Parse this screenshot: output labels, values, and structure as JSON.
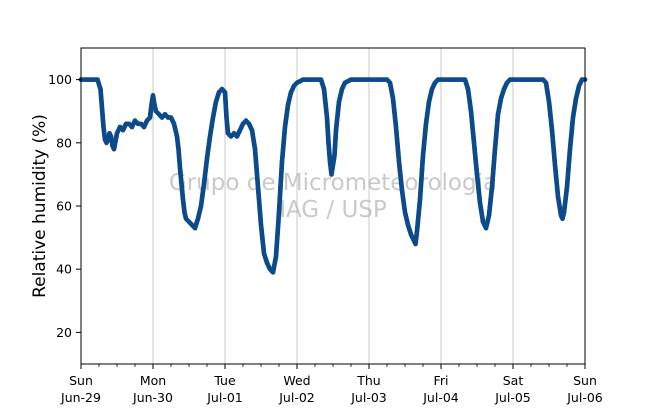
{
  "chart_data": {
    "type": "scatter",
    "title": "",
    "xlabel": "",
    "ylabel": "Relative humidity (%)",
    "watermark": [
      "Grupo de Micrometeorologia",
      "IAG / USP"
    ],
    "xlim": [
      "2025-06-29 00:00",
      "2025-07-06 00:00"
    ],
    "ylim": [
      10,
      110
    ],
    "yticks": [
      20,
      40,
      60,
      80,
      100
    ],
    "xticks": [
      {
        "day": "Sun",
        "date": "Jun-29"
      },
      {
        "day": "Mon",
        "date": "Jun-30"
      },
      {
        "day": "Tue",
        "date": "Jul-01"
      },
      {
        "day": "Wed",
        "date": "Jul-02"
      },
      {
        "day": "Thu",
        "date": "Jul-03"
      },
      {
        "day": "Fri",
        "date": "Jul-04"
      },
      {
        "day": "Sat",
        "date": "Jul-05"
      },
      {
        "day": "Sun",
        "date": "Jul-06"
      }
    ],
    "grid": "vertical-major",
    "marker_color": "#0d4a8c",
    "series": [
      {
        "values": [
          [
            "2025-06-29 00:00",
            100
          ],
          [
            "2025-06-29 02:00",
            100
          ],
          [
            "2025-06-29 04:00",
            100
          ],
          [
            "2025-06-29 05:30",
            100
          ],
          [
            "2025-06-29 06:30",
            97
          ],
          [
            "2025-06-29 07:00",
            91
          ],
          [
            "2025-06-29 07:30",
            85
          ],
          [
            "2025-06-29 08:00",
            81
          ],
          [
            "2025-06-29 08:30",
            80
          ],
          [
            "2025-06-29 09:00",
            81
          ],
          [
            "2025-06-29 09:30",
            83
          ],
          [
            "2025-06-29 10:00",
            82
          ],
          [
            "2025-06-29 10:30",
            79
          ],
          [
            "2025-06-29 11:00",
            78
          ],
          [
            "2025-06-29 12:00",
            83
          ],
          [
            "2025-06-29 13:00",
            85
          ],
          [
            "2025-06-29 14:00",
            84
          ],
          [
            "2025-06-29 15:00",
            86
          ],
          [
            "2025-06-29 16:00",
            86
          ],
          [
            "2025-06-29 17:00",
            85
          ],
          [
            "2025-06-29 18:00",
            87
          ],
          [
            "2025-06-29 19:00",
            86
          ],
          [
            "2025-06-29 20:00",
            86
          ],
          [
            "2025-06-29 21:00",
            85
          ],
          [
            "2025-06-29 22:00",
            87
          ],
          [
            "2025-06-29 23:00",
            88
          ],
          [
            "2025-06-29 23:30",
            92
          ],
          [
            "2025-06-30 00:00",
            95
          ],
          [
            "2025-06-30 00:30",
            92
          ],
          [
            "2025-06-30 01:00",
            90
          ],
          [
            "2025-06-30 02:00",
            89
          ],
          [
            "2025-06-30 03:00",
            88
          ],
          [
            "2025-06-30 04:00",
            89
          ],
          [
            "2025-06-30 05:00",
            88
          ],
          [
            "2025-06-30 06:00",
            88
          ],
          [
            "2025-06-30 07:00",
            86
          ],
          [
            "2025-06-30 08:00",
            82
          ],
          [
            "2025-06-30 08:30",
            78
          ],
          [
            "2025-06-30 09:00",
            72
          ],
          [
            "2025-06-30 09:30",
            67
          ],
          [
            "2025-06-30 10:00",
            62
          ],
          [
            "2025-06-30 10:30",
            58
          ],
          [
            "2025-06-30 11:00",
            56
          ],
          [
            "2025-06-30 12:00",
            55
          ],
          [
            "2025-06-30 13:00",
            54
          ],
          [
            "2025-06-30 14:00",
            53
          ],
          [
            "2025-06-30 15:00",
            56
          ],
          [
            "2025-06-30 16:00",
            60
          ],
          [
            "2025-06-30 17:00",
            67
          ],
          [
            "2025-06-30 18:00",
            75
          ],
          [
            "2025-06-30 19:00",
            82
          ],
          [
            "2025-06-30 20:00",
            88
          ],
          [
            "2025-06-30 21:00",
            93
          ],
          [
            "2025-06-30 22:00",
            96
          ],
          [
            "2025-06-30 23:00",
            97
          ],
          [
            "2025-07-01 00:00",
            96
          ],
          [
            "2025-07-01 00:30",
            88
          ],
          [
            "2025-07-01 01:00",
            83
          ],
          [
            "2025-07-01 02:00",
            82
          ],
          [
            "2025-07-01 03:00",
            83
          ],
          [
            "2025-07-01 04:00",
            82
          ],
          [
            "2025-07-01 05:00",
            84
          ],
          [
            "2025-07-01 06:00",
            86
          ],
          [
            "2025-07-01 07:00",
            87
          ],
          [
            "2025-07-01 08:00",
            86
          ],
          [
            "2025-07-01 09:00",
            84
          ],
          [
            "2025-07-01 10:00",
            78
          ],
          [
            "2025-07-01 11:00",
            66
          ],
          [
            "2025-07-01 12:00",
            54
          ],
          [
            "2025-07-01 13:00",
            45
          ],
          [
            "2025-07-01 14:00",
            42
          ],
          [
            "2025-07-01 15:00",
            40
          ],
          [
            "2025-07-01 16:00",
            39
          ],
          [
            "2025-07-01 17:00",
            44
          ],
          [
            "2025-07-01 18:00",
            58
          ],
          [
            "2025-07-01 19:00",
            74
          ],
          [
            "2025-07-01 20:00",
            85
          ],
          [
            "2025-07-01 21:00",
            92
          ],
          [
            "2025-07-01 22:00",
            96
          ],
          [
            "2025-07-01 23:00",
            98
          ],
          [
            "2025-07-02 00:00",
            99
          ],
          [
            "2025-07-02 02:00",
            100
          ],
          [
            "2025-07-02 04:00",
            100
          ],
          [
            "2025-07-02 06:00",
            100
          ],
          [
            "2025-07-02 08:00",
            100
          ],
          [
            "2025-07-02 09:00",
            97
          ],
          [
            "2025-07-02 10:00",
            88
          ],
          [
            "2025-07-02 10:30",
            80
          ],
          [
            "2025-07-02 11:00",
            74
          ],
          [
            "2025-07-02 11:30",
            70
          ],
          [
            "2025-07-02 12:30",
            76
          ],
          [
            "2025-07-02 13:00",
            84
          ],
          [
            "2025-07-02 14:00",
            93
          ],
          [
            "2025-07-02 15:00",
            97
          ],
          [
            "2025-07-02 16:00",
            99
          ],
          [
            "2025-07-02 18:00",
            100
          ],
          [
            "2025-07-02 20:00",
            100
          ],
          [
            "2025-07-02 22:00",
            100
          ],
          [
            "2025-07-03 00:00",
            100
          ],
          [
            "2025-07-03 02:00",
            100
          ],
          [
            "2025-07-03 04:00",
            100
          ],
          [
            "2025-07-03 06:00",
            100
          ],
          [
            "2025-07-03 07:00",
            99
          ],
          [
            "2025-07-03 08:00",
            94
          ],
          [
            "2025-07-03 09:00",
            85
          ],
          [
            "2025-07-03 10:00",
            74
          ],
          [
            "2025-07-03 11:00",
            65
          ],
          [
            "2025-07-03 12:00",
            58
          ],
          [
            "2025-07-03 13:00",
            54
          ],
          [
            "2025-07-03 14:00",
            51
          ],
          [
            "2025-07-03 15:00",
            49
          ],
          [
            "2025-07-03 15:30",
            48
          ],
          [
            "2025-07-03 16:00",
            52
          ],
          [
            "2025-07-03 17:00",
            62
          ],
          [
            "2025-07-03 18:00",
            76
          ],
          [
            "2025-07-03 19:00",
            86
          ],
          [
            "2025-07-03 20:00",
            93
          ],
          [
            "2025-07-03 21:00",
            97
          ],
          [
            "2025-07-03 22:00",
            99
          ],
          [
            "2025-07-03 23:00",
            100
          ],
          [
            "2025-07-04 00:00",
            100
          ],
          [
            "2025-07-04 02:00",
            100
          ],
          [
            "2025-07-04 04:00",
            100
          ],
          [
            "2025-07-04 06:00",
            100
          ],
          [
            "2025-07-04 08:00",
            100
          ],
          [
            "2025-07-04 09:00",
            97
          ],
          [
            "2025-07-04 10:00",
            90
          ],
          [
            "2025-07-04 11:00",
            80
          ],
          [
            "2025-07-04 12:00",
            70
          ],
          [
            "2025-07-04 13:00",
            61
          ],
          [
            "2025-07-04 14:00",
            55
          ],
          [
            "2025-07-04 15:00",
            53
          ],
          [
            "2025-07-04 16:00",
            57
          ],
          [
            "2025-07-04 17:00",
            66
          ],
          [
            "2025-07-04 18:00",
            78
          ],
          [
            "2025-07-04 19:00",
            89
          ],
          [
            "2025-07-04 20:00",
            94
          ],
          [
            "2025-07-04 21:00",
            97
          ],
          [
            "2025-07-04 22:00",
            99
          ],
          [
            "2025-07-04 23:00",
            100
          ],
          [
            "2025-07-05 00:00",
            100
          ],
          [
            "2025-07-05 02:00",
            100
          ],
          [
            "2025-07-05 04:00",
            100
          ],
          [
            "2025-07-05 06:00",
            100
          ],
          [
            "2025-07-05 08:00",
            100
          ],
          [
            "2025-07-05 10:00",
            100
          ],
          [
            "2025-07-05 11:00",
            99
          ],
          [
            "2025-07-05 12:00",
            93
          ],
          [
            "2025-07-05 13:00",
            84
          ],
          [
            "2025-07-05 14:00",
            73
          ],
          [
            "2025-07-05 15:00",
            63
          ],
          [
            "2025-07-05 16:00",
            57
          ],
          [
            "2025-07-05 16:30",
            56
          ],
          [
            "2025-07-05 17:00",
            58
          ],
          [
            "2025-07-05 18:00",
            66
          ],
          [
            "2025-07-05 19:00",
            78
          ],
          [
            "2025-07-05 20:00",
            88
          ],
          [
            "2025-07-05 21:00",
            94
          ],
          [
            "2025-07-05 22:00",
            98
          ],
          [
            "2025-07-05 23:00",
            100
          ],
          [
            "2025-07-06 00:00",
            100
          ]
        ]
      }
    ]
  }
}
